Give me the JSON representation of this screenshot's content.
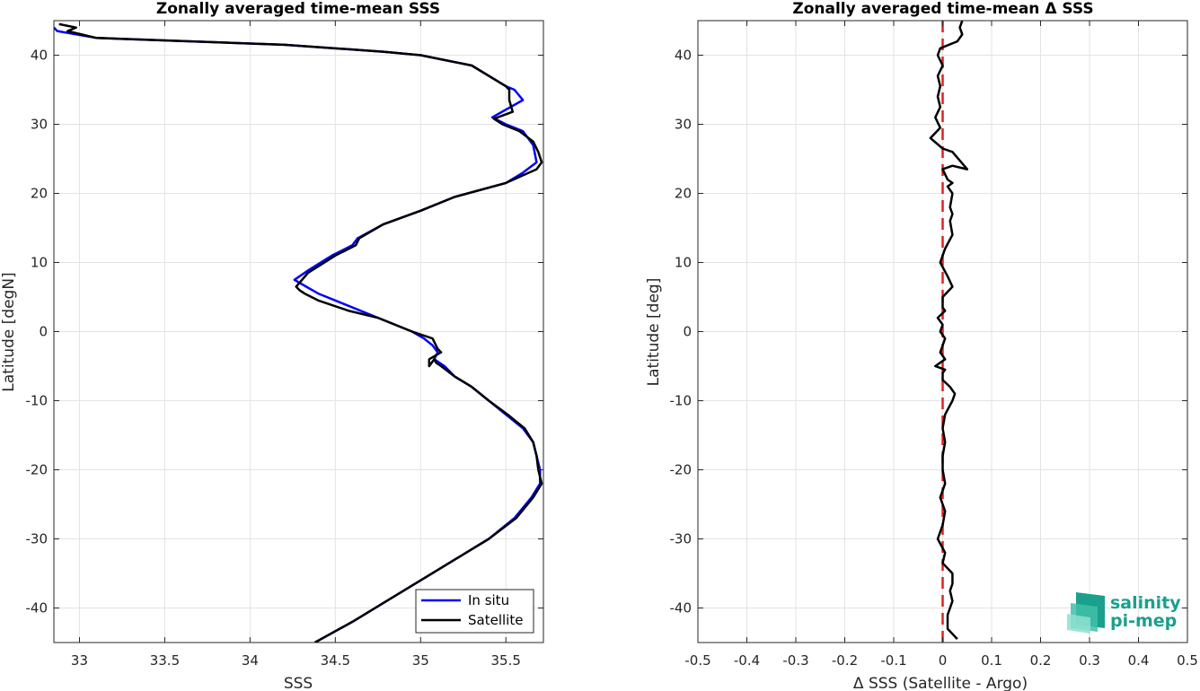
{
  "chart_data": [
    {
      "type": "line",
      "title": "Zonally averaged time-mean SSS",
      "xlabel": "SSS",
      "ylabel": "Latitude [degN]",
      "xlim": [
        32.85,
        35.72
      ],
      "ylim": [
        -45,
        45
      ],
      "xticks": [
        33,
        33.5,
        34,
        34.5,
        35,
        35.5
      ],
      "yticks": [
        -40,
        -30,
        -20,
        -10,
        0,
        10,
        20,
        30,
        40
      ],
      "grid": true,
      "legend": "bottom-right",
      "series": [
        {
          "name": "In situ",
          "color": "#0000ff",
          "x": [
            34.38,
            34.6,
            34.8,
            35.0,
            35.2,
            35.4,
            35.55,
            35.65,
            35.7,
            35.7,
            35.68,
            35.66,
            35.6,
            35.5,
            35.4,
            35.3,
            35.2,
            35.14,
            35.08,
            35.1,
            35.07,
            35.02,
            34.95,
            34.75,
            34.55,
            34.4,
            34.33,
            34.26,
            34.35,
            34.48,
            34.6,
            34.63,
            34.78,
            35.0,
            35.2,
            35.5,
            35.6,
            35.68,
            35.66,
            35.6,
            35.5,
            35.42,
            35.6,
            35.55,
            35.5,
            35.3,
            35.0,
            34.78,
            34.2,
            33.1,
            32.87,
            32.85
          ],
          "y": [
            -45,
            -42,
            -39,
            -36,
            -33,
            -30,
            -27,
            -24,
            -22,
            -20,
            -18,
            -16,
            -14,
            -12,
            -10,
            -8,
            -6.5,
            -5,
            -4,
            -3,
            -2,
            -1,
            0,
            2,
            4,
            5.5,
            6.5,
            7.5,
            9,
            11,
            12.5,
            13.5,
            15.5,
            17.5,
            19.5,
            21.5,
            23,
            24.5,
            27,
            29,
            30,
            31,
            33.5,
            35,
            35.5,
            38.5,
            40,
            40.5,
            41.5,
            42.5,
            43.5,
            44
          ]
        },
        {
          "name": "Satellite",
          "color": "#000000",
          "x": [
            34.38,
            34.6,
            34.8,
            35.0,
            35.2,
            35.4,
            35.56,
            35.66,
            35.71,
            35.69,
            35.68,
            35.66,
            35.61,
            35.51,
            35.4,
            35.3,
            35.2,
            35.12,
            35.09,
            35.08,
            35.05,
            35.05,
            35.12,
            35.1,
            35.07,
            34.95,
            34.75,
            34.58,
            34.4,
            34.32,
            34.29,
            34.27,
            34.34,
            34.5,
            34.62,
            34.64,
            34.78,
            35.0,
            35.2,
            35.5,
            35.68,
            35.71,
            35.69,
            35.66,
            35.58,
            35.48,
            35.43,
            35.54,
            35.52,
            35.52,
            35.5,
            35.3,
            35.0,
            34.78,
            34.2,
            33.1,
            32.93,
            32.98,
            32.88
          ],
          "y": [
            -45,
            -42,
            -39,
            -36,
            -33,
            -30,
            -27,
            -24,
            -22,
            -20,
            -18,
            -16,
            -14,
            -12,
            -10,
            -8,
            -6.5,
            -5,
            -4.5,
            -4,
            -5,
            -4,
            -3,
            -2.5,
            -1,
            0,
            2,
            3,
            4.5,
            5.5,
            6,
            6.5,
            8.5,
            11,
            12.5,
            13.5,
            15.5,
            17.5,
            19.5,
            21.5,
            23.5,
            24.5,
            26,
            27.5,
            29,
            30,
            30.8,
            31.8,
            33.5,
            35,
            35.5,
            38.5,
            40,
            40.5,
            41.5,
            42.5,
            43.5,
            44,
            44.5
          ]
        }
      ]
    },
    {
      "type": "line",
      "title": "Zonally averaged time-mean Δ SSS",
      "xlabel": "Δ SSS (Satellite - Argo)",
      "ylabel": "Latitude [deg]",
      "xlim": [
        -0.5,
        0.5
      ],
      "ylim": [
        -45,
        45
      ],
      "xticks": [
        -0.5,
        -0.4,
        -0.3,
        -0.2,
        -0.1,
        0,
        0.1,
        0.2,
        0.3,
        0.4,
        0.5
      ],
      "yticks": [
        -40,
        -30,
        -20,
        -10,
        0,
        10,
        20,
        30,
        40
      ],
      "grid": true,
      "legend": "none",
      "series": [
        {
          "color": "#000000",
          "x": [
            0.03,
            0.01,
            0.01,
            0.02,
            0.015,
            0.02,
            0.02,
            0.0,
            0.005,
            -0.01,
            0.0,
            0.005,
            -0.005,
            0.005,
            0.0,
            0.0,
            0.005,
            0.0,
            0.005,
            0.02,
            0.025,
            0.015,
            0.0,
            0.0,
            0.005,
            -0.015,
            0.005,
            -0.005,
            0.0,
            0.005,
            -0.005,
            0.0,
            -0.01,
            0.005,
            0.0,
            0.0,
            0.02,
            0.01,
            -0.005,
            0.005,
            0.02,
            0.015,
            0.02,
            0.015,
            0.02,
            0.01,
            0.02,
            0.01,
            0.0,
            0.02,
            0.05,
            0.02,
            0.0,
            -0.025,
            -0.005,
            -0.015,
            -0.005,
            -0.01,
            -0.005,
            -0.01,
            0.0,
            -0.01,
            -0.005,
            0.03,
            0.04,
            0.035,
            0.04
          ],
          "y": [
            -44.5,
            -43,
            -41,
            -39,
            -37.5,
            -36.5,
            -35,
            -33.5,
            -32,
            -30,
            -28,
            -26,
            -24,
            -22,
            -20,
            -18,
            -16,
            -14,
            -12,
            -10,
            -9,
            -8,
            -7,
            -6,
            -5.5,
            -5,
            -4,
            -3,
            -2,
            -1,
            0,
            1,
            2,
            3,
            3.5,
            5,
            6.5,
            8,
            10,
            12,
            14,
            16,
            17,
            18,
            20,
            21,
            21.5,
            22,
            23.5,
            24,
            23.5,
            26,
            26.5,
            28,
            29.5,
            31,
            32.5,
            34,
            35.5,
            37,
            38.5,
            40,
            41,
            42,
            43,
            44,
            45
          ]
        }
      ],
      "reference_line": {
        "x": 0,
        "color": "#e02020",
        "style": "dashed"
      }
    }
  ],
  "logo": {
    "line1": "salinity",
    "line2": "pi-mep",
    "color": "#1aa08c"
  }
}
